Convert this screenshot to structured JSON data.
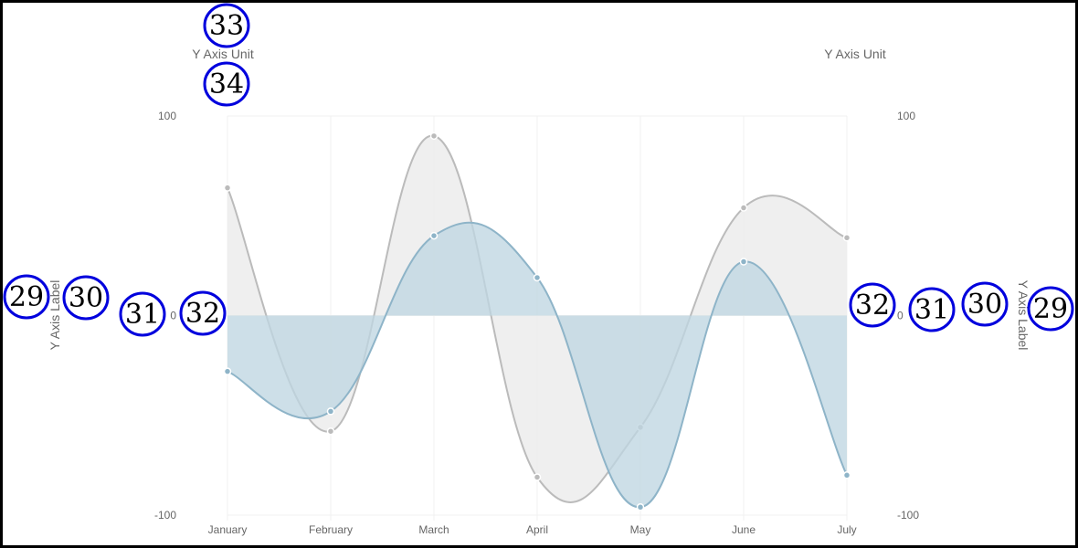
{
  "chart_data": {
    "type": "line",
    "fill": true,
    "smooth": true,
    "categories": [
      "January",
      "February",
      "March",
      "April",
      "May",
      "June",
      "July"
    ],
    "series": [
      {
        "name": "",
        "color": "#bbbbbb",
        "fill_color": "#ebebeb",
        "values": [
          64,
          -58,
          90,
          -81,
          -56,
          54,
          39
        ]
      },
      {
        "name": "",
        "color": "#8eb4c8",
        "fill_color": "#bfd6e2",
        "values": [
          -28,
          -48,
          40,
          19,
          -96,
          27,
          -80
        ]
      }
    ],
    "ylim": [
      -100,
      100
    ],
    "y_ticks": [
      100,
      0,
      -100
    ],
    "y_left": {
      "title": "Y Axis Label",
      "unit": "Y Axis Unit"
    },
    "y_right": {
      "title": "Y Axis Label",
      "unit": "Y Axis Unit"
    },
    "grid": true,
    "legend": "none"
  },
  "annotations": {
    "border_color": "#0000dd",
    "labels": [
      {
        "id": "left-title",
        "text": "29"
      },
      {
        "id": "left-title-gap",
        "text": "30"
      },
      {
        "id": "left-ticks",
        "text": "31"
      },
      {
        "id": "left-axis",
        "text": "32"
      },
      {
        "id": "left-unit-top",
        "text": "33"
      },
      {
        "id": "left-unit-bottom",
        "text": "34"
      },
      {
        "id": "right-axis",
        "text": "32"
      },
      {
        "id": "right-ticks",
        "text": "31"
      },
      {
        "id": "right-title-gap",
        "text": "30"
      },
      {
        "id": "right-title",
        "text": "29"
      }
    ]
  }
}
